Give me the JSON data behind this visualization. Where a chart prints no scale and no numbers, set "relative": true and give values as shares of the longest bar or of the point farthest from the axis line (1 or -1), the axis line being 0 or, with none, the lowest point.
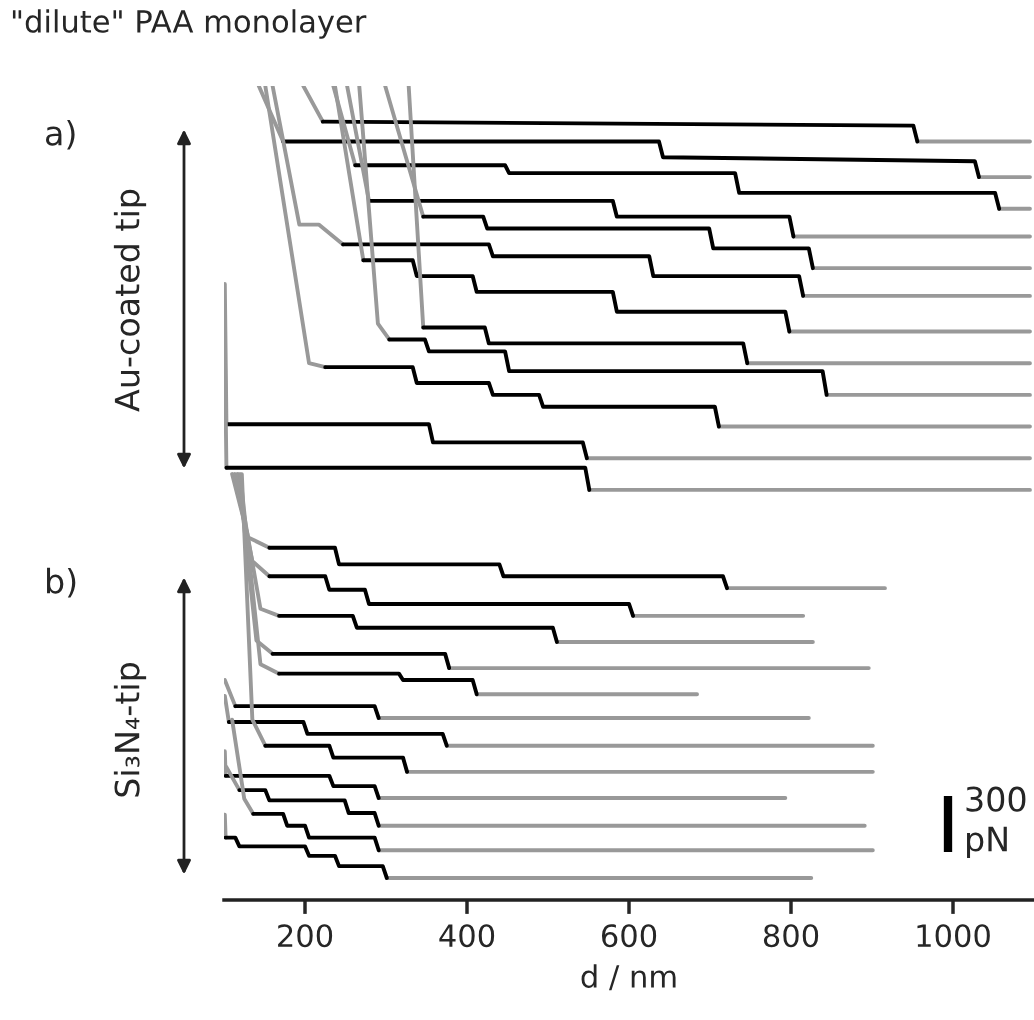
{
  "chart_data": {
    "type": "line",
    "title": "\"dilute\" PAA monolayer",
    "xlabel": "d / nm",
    "relative": true,
    "tick_labels": "x",
    "xlim": [
      100,
      1100
    ],
    "xticks": [
      200,
      400,
      600,
      800,
      1000
    ],
    "annotations": [
      "a)",
      "Au-coated tip",
      "b)",
      "Si₃N₄-tip",
      "300\npN"
    ],
    "series": [
      {
        "color": "#999999",
        "x": [
          198,
          222,
          600,
          956,
          1095
        ],
        "values": [
          1.0,
          0.955,
          null,
          0.93,
          0.93
        ]
      },
      {
        "color": "#000000",
        "x": [
          222,
          951,
          956
        ],
        "values": [
          0.955,
          0.95,
          0.93
        ]
      },
      {
        "color": "#999999",
        "x": [
          143,
          173,
          600,
          1032,
          1095
        ],
        "values": [
          1.0,
          0.93,
          null,
          0.885,
          0.885
        ]
      },
      {
        "color": "#000000",
        "x": [
          173,
          637,
          642,
          1027,
          1032
        ],
        "values": [
          0.93,
          0.93,
          0.91,
          0.905,
          0.885
        ]
      },
      {
        "color": "#999999",
        "x": [
          235,
          262,
          600,
          1057,
          1095
        ],
        "values": [
          1.0,
          0.9,
          null,
          0.845,
          0.845
        ]
      },
      {
        "color": "#000000",
        "x": [
          262,
          447,
          452,
          731,
          736,
          1052,
          1057
        ],
        "values": [
          0.9,
          0.9,
          0.89,
          0.89,
          0.865,
          0.865,
          0.845
        ]
      },
      {
        "color": "#999999",
        "x": [
          252,
          279,
          600,
          803,
          1095
        ],
        "values": [
          1.0,
          0.855,
          null,
          0.81,
          0.81
        ]
      },
      {
        "color": "#000000",
        "x": [
          279,
          580,
          585,
          798,
          803
        ],
        "values": [
          0.855,
          0.855,
          0.835,
          0.835,
          0.81
        ]
      },
      {
        "color": "#999999",
        "x": [
          299,
          346,
          600,
          827,
          1095
        ],
        "values": [
          1.0,
          0.835,
          null,
          0.77,
          0.77
        ]
      },
      {
        "color": "#000000",
        "x": [
          346,
          420,
          425,
          699,
          704,
          822,
          827
        ],
        "values": [
          0.835,
          0.835,
          0.82,
          0.82,
          0.795,
          0.795,
          0.77
        ]
      },
      {
        "color": "#999999",
        "x": [
          160,
          193,
          217,
          247,
          600,
          815,
          1095
        ],
        "values": [
          1.0,
          0.825,
          0.825,
          0.8,
          null,
          0.735,
          0.735
        ]
      },
      {
        "color": "#000000",
        "x": [
          247,
          427,
          432,
          625,
          630,
          810,
          815
        ],
        "values": [
          0.8,
          0.8,
          0.785,
          0.785,
          0.76,
          0.76,
          0.735
        ]
      },
      {
        "color": "#999999",
        "x": [
          237,
          272,
          600,
          798,
          1095
        ],
        "values": [
          1.0,
          0.78,
          null,
          0.69,
          0.69
        ]
      },
      {
        "color": "#000000",
        "x": [
          272,
          333,
          338,
          407,
          412,
          580,
          585,
          793,
          798
        ],
        "values": [
          0.78,
          0.78,
          0.76,
          0.76,
          0.74,
          0.74,
          0.715,
          0.715,
          0.69
        ]
      },
      {
        "color": "#999999",
        "x": [
          328,
          346,
          600,
          746,
          1095
        ],
        "values": [
          1.0,
          0.695,
          null,
          0.65,
          0.65
        ]
      },
      {
        "color": "#000000",
        "x": [
          346,
          422,
          427,
          741,
          746
        ],
        "values": [
          0.695,
          0.695,
          0.675,
          0.675,
          0.65
        ]
      },
      {
        "color": "#999999",
        "x": [
          267,
          290,
          304,
          600,
          844,
          1095
        ],
        "values": [
          1.0,
          0.7,
          0.68,
          null,
          0.61,
          0.61
        ]
      },
      {
        "color": "#000000",
        "x": [
          304,
          348,
          353,
          447,
          452,
          839,
          844
        ],
        "values": [
          0.68,
          0.68,
          0.665,
          0.665,
          0.64,
          0.64,
          0.61
        ]
      },
      {
        "color": "#999999",
        "x": [
          151,
          205,
          225,
          600,
          711,
          1095
        ],
        "values": [
          1.0,
          0.65,
          0.645,
          null,
          0.57,
          0.57
        ]
      },
      {
        "color": "#000000",
        "x": [
          225,
          333,
          338,
          427,
          432,
          489,
          494,
          706,
          711
        ],
        "values": [
          0.645,
          0.645,
          0.625,
          0.625,
          0.61,
          0.61,
          0.595,
          0.595,
          0.57
        ]
      },
      {
        "color": "#999999",
        "x": [
          101,
          103,
          300,
          548,
          1095
        ],
        "values": [
          0.75,
          0.573,
          null,
          0.53,
          0.53
        ]
      },
      {
        "color": "#000000",
        "x": [
          103,
          353,
          358,
          543,
          548
        ],
        "values": [
          0.573,
          0.573,
          0.55,
          0.55,
          0.53
        ]
      },
      {
        "color": "#999999",
        "x": [
          101,
          103,
          300,
          551,
          1095
        ],
        "values": [
          0.67,
          0.518,
          null,
          0.49,
          0.49
        ]
      },
      {
        "color": "#000000",
        "x": [
          103,
          546,
          551
        ],
        "values": [
          0.518,
          0.518,
          0.49
        ]
      },
      {
        "color": "#999999",
        "x": [
          110,
          130,
          156,
          500,
          721,
          916
        ],
        "values": [
          0.51,
          0.43,
          0.417,
          null,
          0.366,
          0.366
        ]
      },
      {
        "color": "#000000",
        "x": [
          156,
          237,
          242,
          440,
          445,
          716,
          721
        ],
        "values": [
          0.417,
          0.417,
          0.396,
          0.396,
          0.381,
          0.381,
          0.366
        ]
      },
      {
        "color": "#999999",
        "x": [
          113,
          135,
          156,
          400,
          605,
          815
        ],
        "values": [
          0.51,
          0.4,
          0.381,
          null,
          0.331,
          0.331
        ]
      },
      {
        "color": "#000000",
        "x": [
          156,
          225,
          230,
          274,
          279,
          600,
          605
        ],
        "values": [
          0.381,
          0.381,
          0.364,
          0.364,
          0.346,
          0.346,
          0.331
        ]
      },
      {
        "color": "#999999",
        "x": [
          116,
          145,
          168,
          300,
          511,
          827
        ],
        "values": [
          0.51,
          0.34,
          0.331,
          null,
          0.298,
          0.298
        ]
      },
      {
        "color": "#000000",
        "x": [
          168,
          259,
          264,
          506,
          511
        ],
        "values": [
          0.331,
          0.331,
          0.316,
          0.316,
          0.298
        ]
      },
      {
        "color": "#999999",
        "x": [
          118,
          140,
          160,
          300,
          378,
          896
        ],
        "values": [
          0.51,
          0.3,
          0.283,
          null,
          0.265,
          0.265
        ]
      },
      {
        "color": "#000000",
        "x": [
          160,
          373,
          378
        ],
        "values": [
          0.283,
          0.283,
          0.265
        ]
      },
      {
        "color": "#999999",
        "x": [
          120,
          145,
          168,
          300,
          412,
          684
        ],
        "values": [
          0.51,
          0.27,
          0.258,
          null,
          0.232,
          0.232
        ]
      },
      {
        "color": "#000000",
        "x": [
          168,
          316,
          321,
          407,
          412
        ],
        "values": [
          0.258,
          0.258,
          0.25,
          0.25,
          0.232
        ]
      },
      {
        "color": "#999999",
        "x": [
          101,
          114,
          200,
          291,
          822
        ],
        "values": [
          0.25,
          0.217,
          null,
          0.202,
          0.202
        ]
      },
      {
        "color": "#000000",
        "x": [
          114,
          286,
          291
        ],
        "values": [
          0.217,
          0.217,
          0.202
        ]
      },
      {
        "color": "#999999",
        "x": [
          101,
          106,
          200,
          375,
          901
        ],
        "values": [
          0.23,
          0.197,
          null,
          0.167,
          0.167
        ]
      },
      {
        "color": "#000000",
        "x": [
          106,
          198,
          203,
          370,
          375
        ],
        "values": [
          0.197,
          0.197,
          0.182,
          0.182,
          0.167
        ]
      },
      {
        "color": "#999999",
        "x": [
          122,
          135,
          151,
          200,
          326,
          901
        ],
        "values": [
          0.51,
          0.2,
          0.167,
          null,
          0.134,
          0.134
        ]
      },
      {
        "color": "#000000",
        "x": [
          151,
          230,
          235,
          321,
          326
        ],
        "values": [
          0.167,
          0.167,
          0.152,
          0.152,
          0.134
        ]
      },
      {
        "color": "#999999",
        "x": [
          101,
          102,
          200,
          291,
          793
        ],
        "values": [
          0.16,
          0.129,
          null,
          0.101,
          0.101
        ]
      },
      {
        "color": "#000000",
        "x": [
          102,
          230,
          235,
          286,
          291
        ],
        "values": [
          0.129,
          0.129,
          0.116,
          0.116,
          0.101
        ]
      },
      {
        "color": "#999999",
        "x": [
          103,
          119,
          200,
          291,
          891
        ],
        "values": [
          0.14,
          0.111,
          null,
          0.066,
          0.066
        ]
      },
      {
        "color": "#000000",
        "x": [
          119,
          151,
          156,
          249,
          254,
          286,
          291
        ],
        "values": [
          0.111,
          0.111,
          0.098,
          0.098,
          0.082,
          0.082,
          0.066
        ]
      },
      {
        "color": "#999999",
        "x": [
          110,
          125,
          136,
          200,
          291,
          901
        ],
        "values": [
          0.2,
          0.1,
          0.081,
          null,
          0.035,
          0.035
        ]
      },
      {
        "color": "#000000",
        "x": [
          136,
          173,
          178,
          200,
          205,
          286,
          291
        ],
        "values": [
          0.081,
          0.081,
          0.066,
          0.066,
          0.051,
          0.051,
          0.035
        ]
      },
      {
        "color": "#999999",
        "x": [
          101,
          102,
          200,
          301,
          825
        ],
        "values": [
          0.08,
          0.051,
          null,
          0.0,
          0.0
        ]
      },
      {
        "color": "#000000",
        "x": [
          102,
          114,
          119,
          200,
          205,
          237,
          242,
          296,
          301
        ],
        "values": [
          0.051,
          0.051,
          0.04,
          0.04,
          0.028,
          0.028,
          0.015,
          0.015,
          0.0
        ]
      }
    ]
  }
}
